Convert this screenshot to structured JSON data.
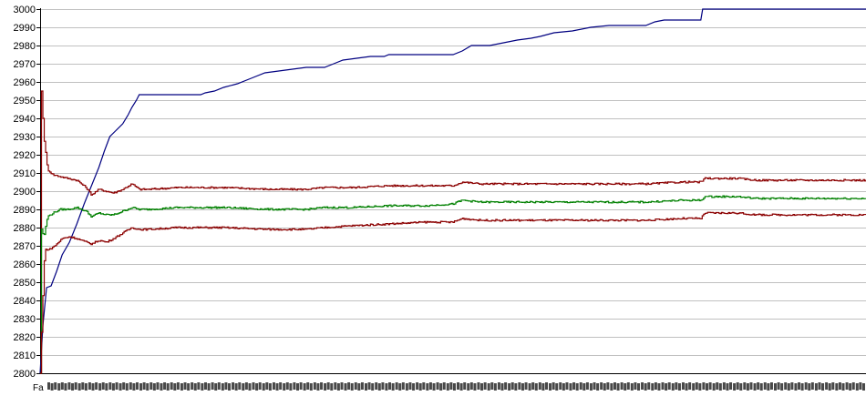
{
  "chart_data": {
    "type": "line",
    "title": "",
    "xlabel": "",
    "ylabel": "",
    "ylim": [
      2800,
      3000
    ],
    "yticks": [
      2800,
      2810,
      2820,
      2830,
      2840,
      2850,
      2860,
      2870,
      2880,
      2890,
      2900,
      2910,
      2920,
      2930,
      2940,
      2950,
      2960,
      2970,
      2980,
      2990,
      3000
    ],
    "grid": true,
    "legend": "none",
    "x_tick_labels_legible": false,
    "x_tick_label_first": "Fa",
    "x_tick_label_count": 80,
    "x_count": 900,
    "series": [
      {
        "color": "#000080",
        "role": "best",
        "points": [
          [
            0,
            2800
          ],
          [
            3,
            2826
          ],
          [
            7,
            2847
          ],
          [
            12,
            2848
          ],
          [
            18,
            2856
          ],
          [
            24,
            2865
          ],
          [
            32,
            2872
          ],
          [
            40,
            2882
          ],
          [
            48,
            2893
          ],
          [
            56,
            2903
          ],
          [
            64,
            2913
          ],
          [
            70,
            2922
          ],
          [
            76,
            2930
          ],
          [
            82,
            2933
          ],
          [
            90,
            2937
          ],
          [
            96,
            2942
          ],
          [
            100,
            2946
          ],
          [
            105,
            2950
          ],
          [
            108,
            2953
          ],
          [
            165,
            2953
          ],
          [
            175,
            2953
          ],
          [
            180,
            2954
          ],
          [
            190,
            2955
          ],
          [
            200,
            2957
          ],
          [
            215,
            2959
          ],
          [
            230,
            2962
          ],
          [
            245,
            2965
          ],
          [
            260,
            2966
          ],
          [
            275,
            2967
          ],
          [
            290,
            2968
          ],
          [
            310,
            2968
          ],
          [
            320,
            2970
          ],
          [
            330,
            2972
          ],
          [
            345,
            2973
          ],
          [
            360,
            2974
          ],
          [
            375,
            2974
          ],
          [
            380,
            2975
          ],
          [
            400,
            2975
          ],
          [
            430,
            2975
          ],
          [
            450,
            2975
          ],
          [
            460,
            2977
          ],
          [
            470,
            2980
          ],
          [
            490,
            2980
          ],
          [
            500,
            2981
          ],
          [
            520,
            2983
          ],
          [
            535,
            2984
          ],
          [
            545,
            2985
          ],
          [
            560,
            2987
          ],
          [
            580,
            2988
          ],
          [
            600,
            2990
          ],
          [
            620,
            2991
          ],
          [
            640,
            2991
          ],
          [
            660,
            2991
          ],
          [
            670,
            2993
          ],
          [
            680,
            2994
          ],
          [
            690,
            2994
          ],
          [
            720,
            2994
          ],
          [
            722,
            3000
          ],
          [
            900,
            3000
          ]
        ]
      },
      {
        "color": "#8b0000",
        "role": "upper",
        "points": [
          [
            0,
            2800
          ],
          [
            1,
            2960
          ],
          [
            4,
            2930
          ],
          [
            8,
            2912
          ],
          [
            14,
            2909
          ],
          [
            22,
            2908
          ],
          [
            30,
            2907
          ],
          [
            40,
            2906
          ],
          [
            50,
            2902
          ],
          [
            56,
            2898
          ],
          [
            64,
            2901
          ],
          [
            72,
            2900
          ],
          [
            80,
            2899
          ],
          [
            90,
            2901
          ],
          [
            100,
            2904
          ],
          [
            108,
            2901
          ],
          [
            118,
            2901
          ],
          [
            150,
            2902
          ],
          [
            200,
            2902
          ],
          [
            250,
            2901
          ],
          [
            290,
            2901
          ],
          [
            310,
            2902
          ],
          [
            340,
            2902
          ],
          [
            380,
            2903
          ],
          [
            420,
            2903
          ],
          [
            450,
            2903
          ],
          [
            460,
            2905
          ],
          [
            480,
            2904
          ],
          [
            500,
            2904
          ],
          [
            540,
            2904
          ],
          [
            600,
            2904
          ],
          [
            660,
            2904
          ],
          [
            700,
            2905
          ],
          [
            720,
            2905
          ],
          [
            724,
            2907
          ],
          [
            760,
            2907
          ],
          [
            780,
            2906
          ],
          [
            820,
            2906
          ],
          [
            900,
            2906
          ]
        ]
      },
      {
        "color": "#008000",
        "role": "average",
        "points": [
          [
            0,
            2800
          ],
          [
            1,
            2880
          ],
          [
            4,
            2875
          ],
          [
            8,
            2886
          ],
          [
            14,
            2888
          ],
          [
            22,
            2890
          ],
          [
            30,
            2890
          ],
          [
            40,
            2891
          ],
          [
            50,
            2889
          ],
          [
            56,
            2886
          ],
          [
            64,
            2888
          ],
          [
            72,
            2887
          ],
          [
            80,
            2887
          ],
          [
            90,
            2889
          ],
          [
            100,
            2891
          ],
          [
            108,
            2890
          ],
          [
            118,
            2890
          ],
          [
            150,
            2891
          ],
          [
            200,
            2891
          ],
          [
            250,
            2890
          ],
          [
            290,
            2890
          ],
          [
            310,
            2891
          ],
          [
            340,
            2891
          ],
          [
            380,
            2892
          ],
          [
            420,
            2892
          ],
          [
            450,
            2893
          ],
          [
            460,
            2895
          ],
          [
            480,
            2894
          ],
          [
            500,
            2894
          ],
          [
            540,
            2894
          ],
          [
            600,
            2894
          ],
          [
            660,
            2894
          ],
          [
            700,
            2895
          ],
          [
            720,
            2895
          ],
          [
            724,
            2897
          ],
          [
            760,
            2897
          ],
          [
            780,
            2896
          ],
          [
            820,
            2896
          ],
          [
            900,
            2896
          ]
        ]
      },
      {
        "color": "#8b0000",
        "role": "lower",
        "points": [
          [
            0,
            2800
          ],
          [
            2,
            2830
          ],
          [
            5,
            2868
          ],
          [
            10,
            2868
          ],
          [
            16,
            2870
          ],
          [
            24,
            2874
          ],
          [
            32,
            2875
          ],
          [
            40,
            2874
          ],
          [
            50,
            2872
          ],
          [
            56,
            2871
          ],
          [
            64,
            2873
          ],
          [
            72,
            2872
          ],
          [
            80,
            2874
          ],
          [
            90,
            2877
          ],
          [
            100,
            2880
          ],
          [
            108,
            2879
          ],
          [
            118,
            2879
          ],
          [
            150,
            2880
          ],
          [
            200,
            2880
          ],
          [
            250,
            2879
          ],
          [
            290,
            2879
          ],
          [
            310,
            2880
          ],
          [
            340,
            2881
          ],
          [
            380,
            2882
          ],
          [
            420,
            2883
          ],
          [
            450,
            2883
          ],
          [
            460,
            2885
          ],
          [
            480,
            2884
          ],
          [
            500,
            2884
          ],
          [
            540,
            2884
          ],
          [
            600,
            2884
          ],
          [
            660,
            2884
          ],
          [
            700,
            2885
          ],
          [
            720,
            2885
          ],
          [
            724,
            2888
          ],
          [
            760,
            2888
          ],
          [
            780,
            2887
          ],
          [
            820,
            2887
          ],
          [
            900,
            2887
          ]
        ]
      }
    ]
  }
}
